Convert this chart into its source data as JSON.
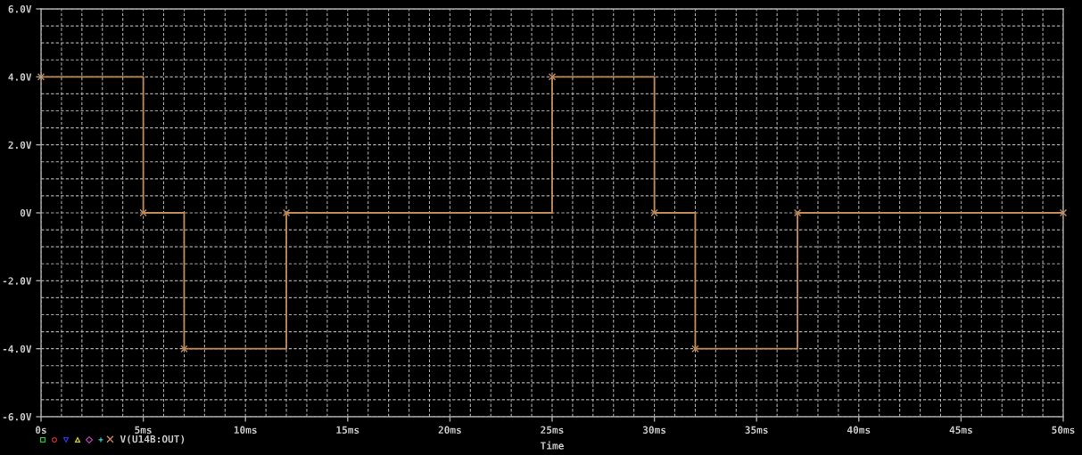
{
  "chart_data": {
    "type": "step",
    "xlabel": "Time",
    "x": [
      0,
      5,
      7,
      12,
      25,
      30,
      32,
      37,
      50
    ],
    "series": [
      {
        "name": "V(U14B:OUT)",
        "color": "#c08a58",
        "values": [
          4,
          0,
          -4,
          0,
          4,
          0,
          -4,
          0,
          0
        ]
      }
    ],
    "xlim": [
      0,
      50
    ],
    "ylim": [
      -6,
      6
    ],
    "xticks": [
      {
        "value": 0,
        "label": "0s"
      },
      {
        "value": 1,
        "label": null
      },
      {
        "value": 2,
        "label": null
      },
      {
        "value": 3,
        "label": null
      },
      {
        "value": 4,
        "label": null
      },
      {
        "value": 5,
        "label": "5ms"
      },
      {
        "value": 6,
        "label": null
      },
      {
        "value": 7,
        "label": null
      },
      {
        "value": 8,
        "label": null
      },
      {
        "value": 9,
        "label": null
      },
      {
        "value": 10,
        "label": "10ms"
      },
      {
        "value": 11,
        "label": null
      },
      {
        "value": 12,
        "label": null
      },
      {
        "value": 13,
        "label": null
      },
      {
        "value": 14,
        "label": null
      },
      {
        "value": 15,
        "label": "15ms"
      },
      {
        "value": 16,
        "label": null
      },
      {
        "value": 17,
        "label": null
      },
      {
        "value": 18,
        "label": null
      },
      {
        "value": 19,
        "label": null
      },
      {
        "value": 20,
        "label": "20ms"
      },
      {
        "value": 21,
        "label": null
      },
      {
        "value": 22,
        "label": null
      },
      {
        "value": 23,
        "label": null
      },
      {
        "value": 24,
        "label": null
      },
      {
        "value": 25,
        "label": "25ms"
      },
      {
        "value": 26,
        "label": null
      },
      {
        "value": 27,
        "label": null
      },
      {
        "value": 28,
        "label": null
      },
      {
        "value": 29,
        "label": null
      },
      {
        "value": 30,
        "label": "30ms"
      },
      {
        "value": 31,
        "label": null
      },
      {
        "value": 32,
        "label": null
      },
      {
        "value": 33,
        "label": null
      },
      {
        "value": 34,
        "label": null
      },
      {
        "value": 35,
        "label": "35ms"
      },
      {
        "value": 36,
        "label": null
      },
      {
        "value": 37,
        "label": null
      },
      {
        "value": 38,
        "label": null
      },
      {
        "value": 39,
        "label": null
      },
      {
        "value": 40,
        "label": "40ms"
      },
      {
        "value": 41,
        "label": null
      },
      {
        "value": 42,
        "label": null
      },
      {
        "value": 43,
        "label": null
      },
      {
        "value": 44,
        "label": null
      },
      {
        "value": 45,
        "label": "45ms"
      },
      {
        "value": 46,
        "label": null
      },
      {
        "value": 47,
        "label": null
      },
      {
        "value": 48,
        "label": null
      },
      {
        "value": 49,
        "label": null
      },
      {
        "value": 50,
        "label": "50ms"
      }
    ],
    "yticks": [
      {
        "value": -6,
        "label": "-6.0V"
      },
      {
        "value": -5.5,
        "label": null
      },
      {
        "value": -5,
        "label": null
      },
      {
        "value": -4.5,
        "label": null
      },
      {
        "value": -4,
        "label": "-4.0V"
      },
      {
        "value": -3.5,
        "label": null
      },
      {
        "value": -3,
        "label": null
      },
      {
        "value": -2.5,
        "label": null
      },
      {
        "value": -2,
        "label": "-2.0V"
      },
      {
        "value": -1.5,
        "label": null
      },
      {
        "value": -1,
        "label": null
      },
      {
        "value": -0.5,
        "label": null
      },
      {
        "value": 0,
        "label": "0V"
      },
      {
        "value": 0.5,
        "label": null
      },
      {
        "value": 1,
        "label": null
      },
      {
        "value": 1.5,
        "label": null
      },
      {
        "value": 2,
        "label": "2.0V"
      },
      {
        "value": 2.5,
        "label": null
      },
      {
        "value": 3,
        "label": null
      },
      {
        "value": 3.5,
        "label": null
      },
      {
        "value": 4,
        "label": "4.0V"
      },
      {
        "value": 4.5,
        "label": null
      },
      {
        "value": 5,
        "label": null
      },
      {
        "value": 5.5,
        "label": null
      },
      {
        "value": 6,
        "label": "6.0V"
      }
    ],
    "grid": true,
    "legend": "bottom left",
    "marker": "cross",
    "line_style": "solid"
  }
}
